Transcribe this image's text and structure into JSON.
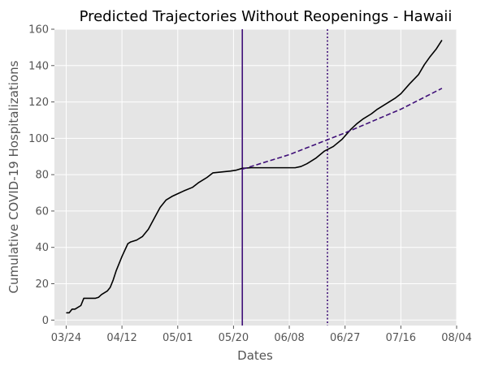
{
  "chart_data": {
    "type": "line",
    "title": "Predicted Trajectories Without Reopenings - Hawaii",
    "xlabel": "Dates",
    "ylabel": "Cumulative COVID-19 Hospitalizations",
    "xlim": [
      "2020-03-20",
      "2020-08-04"
    ],
    "ylim": [
      -3,
      160
    ],
    "grid": true,
    "x_ticks": [
      "2020-03-24",
      "2020-04-12",
      "2020-05-01",
      "2020-05-20",
      "2020-06-08",
      "2020-06-27",
      "2020-07-16",
      "2020-08-04"
    ],
    "x_tick_labels": [
      "03/24",
      "04/12",
      "05/01",
      "05/20",
      "06/08",
      "06/27",
      "07/16",
      "08/04"
    ],
    "y_ticks": [
      0,
      20,
      40,
      60,
      80,
      100,
      120,
      140,
      160
    ],
    "series": [
      {
        "style": "solid",
        "color": "#000000",
        "points": [
          [
            "2020-03-24",
            4
          ],
          [
            "2020-03-25",
            4
          ],
          [
            "2020-03-26",
            6
          ],
          [
            "2020-03-27",
            6
          ],
          [
            "2020-03-29",
            8
          ],
          [
            "2020-03-30",
            12
          ],
          [
            "2020-04-01",
            12
          ],
          [
            "2020-04-03",
            12
          ],
          [
            "2020-04-04",
            12.5
          ],
          [
            "2020-04-05",
            14
          ],
          [
            "2020-04-07",
            16
          ],
          [
            "2020-04-08",
            18
          ],
          [
            "2020-04-09",
            22
          ],
          [
            "2020-04-10",
            27
          ],
          [
            "2020-04-12",
            35
          ],
          [
            "2020-04-14",
            42
          ],
          [
            "2020-04-15",
            43
          ],
          [
            "2020-04-17",
            44
          ],
          [
            "2020-04-19",
            46
          ],
          [
            "2020-04-21",
            50
          ],
          [
            "2020-04-23",
            56
          ],
          [
            "2020-04-25",
            62
          ],
          [
            "2020-04-27",
            66
          ],
          [
            "2020-04-29",
            68
          ],
          [
            "2020-05-01",
            69.5
          ],
          [
            "2020-05-03",
            71
          ],
          [
            "2020-05-06",
            73
          ],
          [
            "2020-05-08",
            75.5
          ],
          [
            "2020-05-11",
            78.5
          ],
          [
            "2020-05-13",
            81
          ],
          [
            "2020-05-16",
            81.5
          ],
          [
            "2020-05-19",
            82
          ],
          [
            "2020-05-21",
            82.5
          ],
          [
            "2020-05-23",
            83.5
          ],
          [
            "2020-05-26",
            83.8
          ],
          [
            "2020-05-30",
            83.8
          ],
          [
            "2020-06-04",
            83.8
          ],
          [
            "2020-06-10",
            83.8
          ],
          [
            "2020-06-12",
            84.5
          ],
          [
            "2020-06-14",
            86
          ],
          [
            "2020-06-17",
            89
          ],
          [
            "2020-06-20",
            93
          ],
          [
            "2020-06-23",
            95.5
          ],
          [
            "2020-06-26",
            99.5
          ],
          [
            "2020-06-29",
            105
          ],
          [
            "2020-07-01",
            108
          ],
          [
            "2020-07-03",
            110.5
          ],
          [
            "2020-07-06",
            113.5
          ],
          [
            "2020-07-08",
            116
          ],
          [
            "2020-07-10",
            118
          ],
          [
            "2020-07-12",
            120
          ],
          [
            "2020-07-14",
            122
          ],
          [
            "2020-07-16",
            124.5
          ],
          [
            "2020-07-19",
            130
          ],
          [
            "2020-07-22",
            135
          ],
          [
            "2020-07-24",
            140.5
          ],
          [
            "2020-07-26",
            145
          ],
          [
            "2020-07-28",
            149
          ],
          [
            "2020-07-30",
            154
          ]
        ]
      },
      {
        "style": "dashed",
        "color": "#3f0f78",
        "points": [
          [
            "2020-05-23",
            83
          ],
          [
            "2020-06-08",
            91
          ],
          [
            "2020-06-27",
            103
          ],
          [
            "2020-07-16",
            116
          ],
          [
            "2020-07-30",
            127.5
          ]
        ]
      }
    ],
    "vertical_lines": [
      {
        "x": "2020-05-23",
        "style": "solid",
        "color": "#3f0f78"
      },
      {
        "x": "2020-06-21",
        "style": "dotted",
        "color": "#3f0f78"
      }
    ]
  }
}
